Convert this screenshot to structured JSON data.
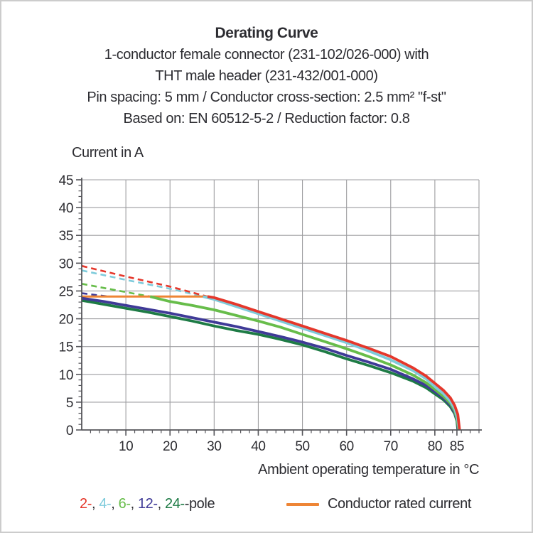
{
  "header": {
    "title": "Derating Curve",
    "subtitle_lines": [
      "1-conductor female connector (231-102/026-000) with",
      "THT male header (231-432/001-000)",
      "Pin spacing: 5 mm / Conductor cross-section: 2.5 mm² \"f-st\"",
      "Based on: EN 60512-5-2 / Reduction factor: 0.8"
    ]
  },
  "chart_data": {
    "type": "line",
    "title": "Derating Curve",
    "xlabel": "Ambient operating temperature in °C",
    "ylabel": "Current in A",
    "xlim": [
      0,
      90
    ],
    "ylim": [
      0,
      45
    ],
    "grid": true,
    "x_major_ticks": [
      10,
      20,
      30,
      40,
      50,
      60,
      70,
      80,
      85
    ],
    "x_minor_step": 2,
    "y_major_ticks": [
      0,
      5,
      10,
      15,
      20,
      25,
      30,
      35,
      40,
      45
    ],
    "y_minor_step": 1,
    "axis_color": "#55555a",
    "grid_color": "#9d9da0",
    "series": [
      {
        "name": "2-pole",
        "color": "#e5372b",
        "dashed": [
          [
            0,
            29.5
          ],
          [
            10,
            27.6
          ],
          [
            20,
            25.8
          ],
          [
            28.5,
            24.0
          ]
        ],
        "solid": [
          [
            28.5,
            24.0
          ],
          [
            30,
            23.8
          ],
          [
            35,
            22.6
          ],
          [
            40,
            21.3
          ],
          [
            45,
            20.0
          ],
          [
            50,
            18.7
          ],
          [
            55,
            17.4
          ],
          [
            60,
            16.1
          ],
          [
            65,
            14.7
          ],
          [
            70,
            13.2
          ],
          [
            75,
            11.2
          ],
          [
            78,
            9.7
          ],
          [
            80,
            8.4
          ],
          [
            82,
            7.1
          ],
          [
            83.5,
            5.8
          ],
          [
            84.5,
            4.4
          ],
          [
            85.2,
            2.8
          ],
          [
            85.6,
            0
          ]
        ]
      },
      {
        "name": "4-pole",
        "color": "#7ecbdb",
        "dashed": [
          [
            0,
            28.7
          ],
          [
            10,
            27.0
          ],
          [
            20,
            25.4
          ],
          [
            27.5,
            24.0
          ]
        ],
        "solid": [
          [
            27.5,
            24.0
          ],
          [
            30,
            23.5
          ],
          [
            35,
            22.2
          ],
          [
            40,
            20.9
          ],
          [
            45,
            19.6
          ],
          [
            50,
            18.3
          ],
          [
            55,
            17.0
          ],
          [
            60,
            15.7
          ],
          [
            65,
            14.2
          ],
          [
            70,
            12.6
          ],
          [
            75,
            10.7
          ],
          [
            78,
            9.2
          ],
          [
            80,
            7.8
          ],
          [
            82,
            6.5
          ],
          [
            83.5,
            5.2
          ],
          [
            84.5,
            3.8
          ],
          [
            85.1,
            2.2
          ],
          [
            85.5,
            0
          ]
        ]
      },
      {
        "name": "6-pole",
        "color": "#67bd4a",
        "dashed": [
          [
            0,
            26.3
          ],
          [
            8,
            25.1
          ],
          [
            15.5,
            24.0
          ]
        ],
        "solid": [
          [
            15.5,
            24.0
          ],
          [
            20,
            23.1
          ],
          [
            25,
            22.4
          ],
          [
            30,
            21.6
          ],
          [
            35,
            20.6
          ],
          [
            40,
            19.6
          ],
          [
            45,
            18.5
          ],
          [
            50,
            17.2
          ],
          [
            55,
            15.9
          ],
          [
            60,
            14.6
          ],
          [
            65,
            13.2
          ],
          [
            70,
            11.7
          ],
          [
            75,
            9.9
          ],
          [
            78,
            8.5
          ],
          [
            80,
            7.3
          ],
          [
            82,
            6.0
          ],
          [
            83.5,
            4.8
          ],
          [
            84.5,
            3.4
          ],
          [
            85,
            2.0
          ],
          [
            85.4,
            0
          ]
        ]
      },
      {
        "name": "12-pole",
        "color": "#3f3a97",
        "dashed": [
          [
            0,
            24.6
          ],
          [
            6,
            24.0
          ]
        ],
        "solid": [
          [
            0,
            23.7
          ],
          [
            5,
            23.1
          ],
          [
            10,
            22.4
          ],
          [
            15,
            21.7
          ],
          [
            20,
            21.0
          ],
          [
            25,
            20.2
          ],
          [
            30,
            19.4
          ],
          [
            35,
            18.6
          ],
          [
            40,
            17.7
          ],
          [
            45,
            16.8
          ],
          [
            50,
            15.8
          ],
          [
            55,
            14.7
          ],
          [
            60,
            13.4
          ],
          [
            65,
            12.2
          ],
          [
            70,
            10.9
          ],
          [
            75,
            9.2
          ],
          [
            78,
            8.0
          ],
          [
            80,
            6.9
          ],
          [
            82,
            5.7
          ],
          [
            83.5,
            4.5
          ],
          [
            84.5,
            3.1
          ],
          [
            85,
            1.8
          ],
          [
            85.3,
            0
          ]
        ]
      },
      {
        "name": "24-pole",
        "color": "#1e7b45",
        "dashed": [],
        "solid": [
          [
            0,
            23.3
          ],
          [
            5,
            22.6
          ],
          [
            10,
            21.9
          ],
          [
            15,
            21.2
          ],
          [
            20,
            20.4
          ],
          [
            25,
            19.6
          ],
          [
            30,
            18.7
          ],
          [
            35,
            17.9
          ],
          [
            40,
            17.2
          ],
          [
            45,
            16.3
          ],
          [
            50,
            15.3
          ],
          [
            55,
            14.1
          ],
          [
            60,
            12.8
          ],
          [
            65,
            11.6
          ],
          [
            70,
            10.3
          ],
          [
            75,
            8.8
          ],
          [
            78,
            7.6
          ],
          [
            80,
            6.5
          ],
          [
            82,
            5.4
          ],
          [
            83.5,
            4.2
          ],
          [
            84.5,
            2.9
          ],
          [
            85,
            1.6
          ],
          [
            85.2,
            0
          ]
        ]
      }
    ],
    "rated_current": {
      "label": "Conductor rated current",
      "color": "#ee8535",
      "value": 24.0,
      "x_span": [
        0,
        28.5
      ]
    }
  },
  "legend": {
    "pole_items": [
      {
        "label": "2-",
        "color": "#e5372b"
      },
      {
        "label": "4-",
        "color": "#7ecbdb"
      },
      {
        "label": "6-",
        "color": "#67bd4a"
      },
      {
        "label": "12-",
        "color": "#3f3a97"
      },
      {
        "label": "24-",
        "color": "#1e7b45"
      }
    ],
    "separator": ", ",
    "suffix": "-pole",
    "rated_label": "Conductor rated current",
    "rated_color": "#ee8535"
  }
}
